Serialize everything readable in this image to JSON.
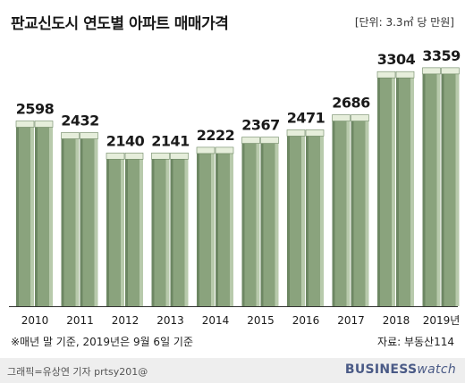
{
  "title": "판교신도시 연도별 아파트 매매가격",
  "unit": "[단위: 3.3㎡ 당 만원]",
  "footnote": "※매년 말 기준, 2019년은 9월 6일 기준",
  "source": "자료: 부동산114",
  "credit": "그래픽=유상연 기자 prtsy201@",
  "brand": {
    "part1": "BUSINESS",
    "part2": "watch"
  },
  "colors": {
    "bar_main": "#8aa37d",
    "bar_light": "#b8caac",
    "bar_dark": "#6d8763",
    "band": "#e6eedb"
  },
  "chart_data": {
    "type": "bar",
    "title": "판교신도시 연도별 아파트 매매가격",
    "xlabel": "",
    "ylabel": "",
    "categories": [
      "2010",
      "2011",
      "2012",
      "2013",
      "2014",
      "2015",
      "2016",
      "2017",
      "2018",
      "2019년"
    ],
    "values": [
      2598,
      2432,
      2140,
      2141,
      2222,
      2367,
      2471,
      2686,
      3304,
      3359
    ],
    "ylim": [
      0,
      3600
    ],
    "grid": false
  }
}
